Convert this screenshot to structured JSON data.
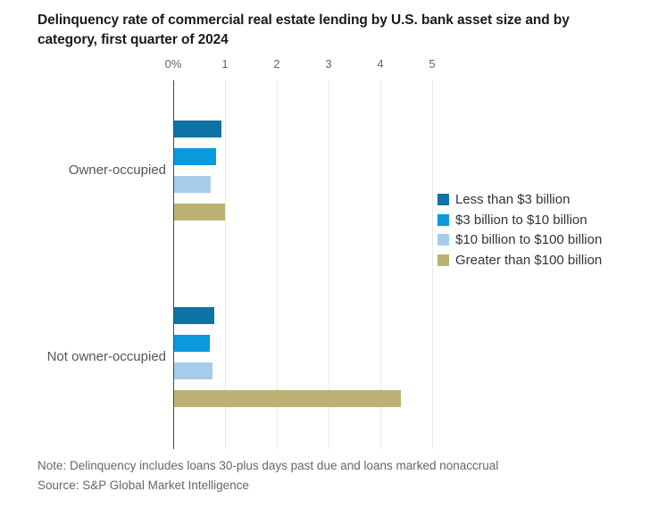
{
  "page": {
    "title": "Delinquency rate of commercial real estate lending by U.S. bank asset size and by category, first quarter of 2024",
    "note": "Note: Delinquency includes loans 30-plus days past due and loans marked nonaccrual",
    "source": "Source: S&P Global Market Intelligence"
  },
  "chart_data": {
    "type": "bar",
    "orientation": "horizontal",
    "title": "Delinquency rate of commercial real estate lending by U.S. bank asset size and by category, first quarter of 2024",
    "categories": [
      "Owner-occupied",
      "Not owner-occupied"
    ],
    "series": [
      {
        "name": "Less than $3 billion",
        "color": "#0e73a6",
        "values": [
          0.93,
          0.8
        ]
      },
      {
        "name": "$3 billion to $10 billion",
        "color": "#0999dc",
        "values": [
          0.83,
          0.71
        ]
      },
      {
        "name": "$10 billion to $100 billion",
        "color": "#a5cdeb",
        "values": [
          0.73,
          0.75
        ]
      },
      {
        "name": "Greater than $100 billion",
        "color": "#bcb274",
        "values": [
          1.0,
          4.4
        ]
      }
    ],
    "x_axis": {
      "tick_labels": [
        "0%",
        "1",
        "2",
        "3",
        "4",
        "5"
      ],
      "tick_values": [
        0,
        1,
        2,
        3,
        4,
        5
      ],
      "min": 0,
      "max": 5,
      "unit": "percent"
    },
    "ylabel": "",
    "xlabel": "",
    "grid": true,
    "legend_position": "right"
  },
  "colors": {
    "background": "#ffffff",
    "title_text": "#1a1a1a",
    "axis_line": "#4a4a4a",
    "gridline": "#e9e9e9",
    "tick_label": "#666666",
    "category_label": "#555555",
    "legend_text": "#333333",
    "note_text": "#666666"
  }
}
